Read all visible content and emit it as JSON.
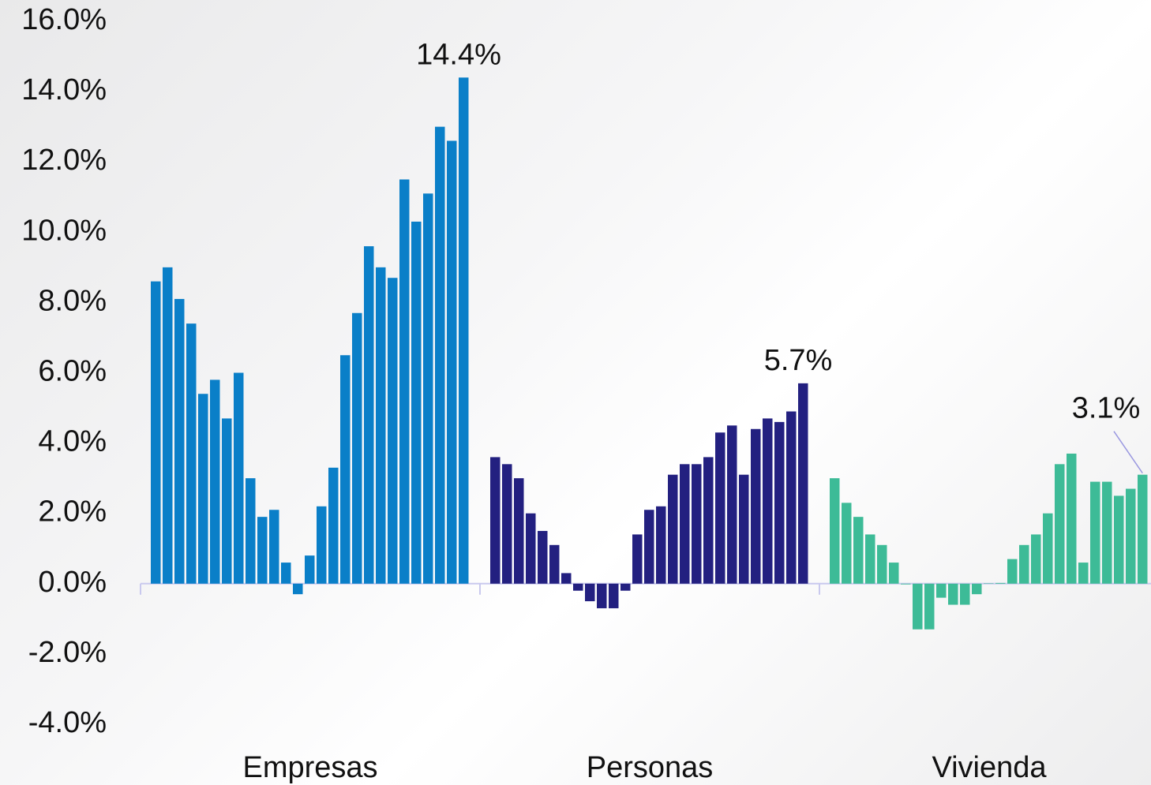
{
  "chart_data": {
    "type": "bar",
    "ylim": [
      -4,
      16
    ],
    "yticks": [
      {
        "value": -4,
        "label": "-4.0%"
      },
      {
        "value": -2,
        "label": "-2.0%"
      },
      {
        "value": 0,
        "label": "0.0%"
      },
      {
        "value": 2,
        "label": "2.0%"
      },
      {
        "value": 4,
        "label": "4.0%"
      },
      {
        "value": 6,
        "label": "6.0%"
      },
      {
        "value": 8,
        "label": "8.0%"
      },
      {
        "value": 10,
        "label": "10.0%"
      },
      {
        "value": 12,
        "label": "12.0%"
      },
      {
        "value": 14,
        "label": "14.0%"
      },
      {
        "value": 16,
        "label": "16.0%"
      }
    ],
    "grid": false,
    "series": [
      {
        "name": "Empresas",
        "color": "#0a7fc8",
        "values": [
          8.6,
          9.0,
          8.1,
          7.4,
          5.4,
          5.8,
          4.7,
          6.0,
          3.0,
          1.9,
          2.1,
          0.6,
          -0.3,
          0.8,
          2.2,
          3.3,
          6.5,
          7.7,
          9.6,
          9.0,
          8.7,
          11.5,
          10.3,
          11.1,
          13.0,
          12.6,
          14.4
        ],
        "value_labels": [
          null,
          null,
          null,
          null,
          null,
          null,
          null,
          null,
          null,
          null,
          null,
          null,
          null,
          null,
          null,
          null,
          null,
          null,
          null,
          null,
          null,
          null,
          null,
          null,
          null,
          null,
          "14.4%"
        ]
      },
      {
        "name": "Personas",
        "color": "#232080",
        "values": [
          3.6,
          3.4,
          3.0,
          2.0,
          1.5,
          1.1,
          0.3,
          -0.2,
          -0.5,
          -0.7,
          -0.7,
          -0.2,
          1.4,
          2.1,
          2.2,
          3.1,
          3.4,
          3.4,
          3.6,
          4.3,
          4.5,
          3.1,
          4.4,
          4.7,
          4.6,
          4.9,
          5.7
        ],
        "value_labels": [
          null,
          null,
          null,
          null,
          null,
          null,
          null,
          null,
          null,
          null,
          null,
          null,
          null,
          null,
          null,
          null,
          null,
          null,
          null,
          null,
          null,
          null,
          null,
          null,
          null,
          null,
          "5.7%"
        ]
      },
      {
        "name": "Vivienda",
        "color": "#3dbb97",
        "values": [
          3.0,
          2.3,
          1.9,
          1.4,
          1.1,
          0.6,
          -0.02,
          -1.3,
          -1.3,
          -0.4,
          -0.6,
          -0.6,
          -0.3,
          0.01,
          0.02,
          0.7,
          1.1,
          1.4,
          2.0,
          3.4,
          3.7,
          0.6,
          2.9,
          2.9,
          2.5,
          2.7,
          3.1
        ],
        "value_labels": [
          null,
          null,
          null,
          null,
          null,
          null,
          null,
          null,
          null,
          null,
          null,
          null,
          null,
          null,
          null,
          null,
          null,
          null,
          null,
          null,
          null,
          null,
          null,
          null,
          null,
          null,
          "3.1%"
        ]
      }
    ]
  }
}
